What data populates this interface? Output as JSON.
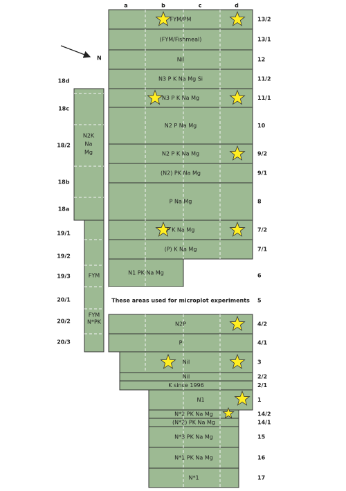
{
  "column_labels": [
    "a",
    "b",
    "c",
    "d"
  ],
  "north_label": "N",
  "plots": [
    {
      "id": "13/2",
      "text": "FYM/PM"
    },
    {
      "id": "13/1",
      "text": "(FYM/Fishmeal)"
    },
    {
      "id": "12",
      "text": "Nil"
    },
    {
      "id": "11/2",
      "text": "N3 P K Na Mg Si"
    },
    {
      "id": "11/1",
      "text": "N3 P K Na Mg"
    },
    {
      "id": "10",
      "text": "N2 P Na Mg"
    },
    {
      "id": "9/2",
      "text": "N2 P K Na Mg"
    },
    {
      "id": "9/1",
      "text": "(N2) PK Na Mg"
    },
    {
      "id": "8",
      "text": "P Na Mg"
    },
    {
      "id": "7/2",
      "text": "P K Na Mg"
    },
    {
      "id": "7/1",
      "text": "(P) K Na Mg"
    },
    {
      "id": "6",
      "text": "N1 PK Na Mg"
    },
    {
      "id": "5",
      "text": "These areas used for microplot experiments"
    },
    {
      "id": "4/2",
      "text": "N2P"
    },
    {
      "id": "4/1",
      "text": "P"
    },
    {
      "id": "3",
      "text": "Nil"
    },
    {
      "id": "2/2",
      "text": "Nil"
    },
    {
      "id": "2/1",
      "text": "K since 1996"
    },
    {
      "id": "1",
      "text": "N1"
    },
    {
      "id": "14/2",
      "text": "N*2 PK Na Mg"
    },
    {
      "id": "14/1",
      "text": "(N*2) PK Na Mg"
    },
    {
      "id": "15",
      "text": "N*3 PK Na Mg"
    },
    {
      "id": "16",
      "text": "N*1 PK Na Mg"
    },
    {
      "id": "17",
      "text": "N*1"
    }
  ],
  "left_labels": [
    "18d",
    "18c",
    "18/2",
    "18b",
    "18a",
    "19/1",
    "19/2",
    "19/3",
    "20/1",
    "20/2",
    "20/3"
  ],
  "left_block_text": [
    "N2K",
    "Na",
    "Mg"
  ],
  "left_column_texts": [
    [
      "FYM"
    ],
    [
      "FYM",
      "N*PK"
    ]
  ]
}
